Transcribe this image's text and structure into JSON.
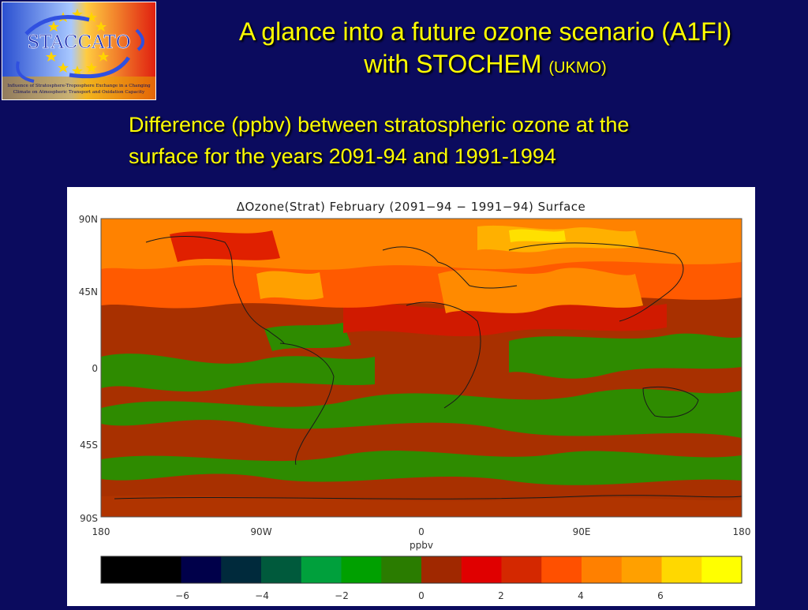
{
  "header": {
    "title_line1": "A glance into a future ozone scenario (A1FI)",
    "title_line2": "with STOCHEM",
    "title_suffix": "(UKMO)",
    "subtitle_line1": "Difference (ppbv) between stratospheric ozone at the",
    "subtitle_line2": "surface for the years 2091-94 and 1991-1994"
  },
  "logo": {
    "name": "STACCATO",
    "tagline_line1": "Influence of Stratosphere-Troposphere Exchange in a Changing",
    "tagline_line2": "Climate on Atmospheric Transport and Oxidation Capacity",
    "icon": "eu-stars-with-arrows-icon"
  },
  "map": {
    "title": "ΔOzone(Strat)  February  (2091−94  −  1991−94)  Surface",
    "lat_labels": [
      "90N",
      "45N",
      "0",
      "45S",
      "90S"
    ],
    "lon_labels": [
      "180",
      "90W",
      "0",
      "90E",
      "180"
    ],
    "unit_label": "ppbv",
    "projection": "equirectangular",
    "extent": {
      "lon": [
        -180,
        180
      ],
      "lat": [
        -90,
        90
      ]
    },
    "dominant_pattern": {
      "northern_hemisphere_high_latitudes": "orange-red to yellow (positive, ~3 to 7 ppbv)",
      "tropics": "red to dark red (~0 to 2 ppbv)",
      "southern_hemisphere": "green patches (negative, ~-1 to -2 ppbv) mixed with dark red"
    }
  },
  "colorbar": {
    "colors": [
      "#000000",
      "#000000",
      "#00004a",
      "#002a3c",
      "#005a3c",
      "#00a03c",
      "#00a000",
      "#2a7c00",
      "#a02800",
      "#e00000",
      "#d42800",
      "#ff5000",
      "#ff8000",
      "#ffa000",
      "#ffd800",
      "#ffff00"
    ],
    "ticks": [
      "−6",
      "−4",
      "−2",
      "0",
      "2",
      "4",
      "6"
    ]
  }
}
